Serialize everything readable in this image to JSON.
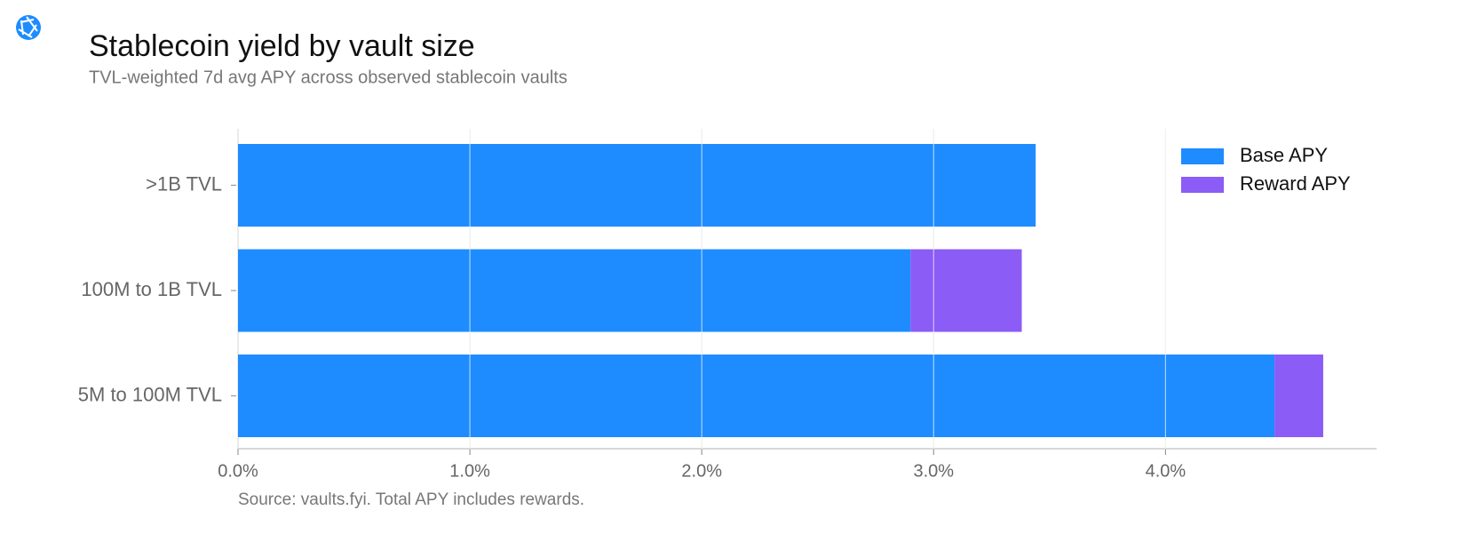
{
  "chart_data": {
    "type": "stacked-barh",
    "title": "Stablecoin yield by vault size",
    "subtitle": "TVL-weighted 7d avg APY across observed stablecoin vaults",
    "note": "Source: vaults.fyi. Total APY includes rewards.",
    "categories": [
      ">1B TVL",
      "100M to 1B TVL",
      "5M to 100M TVL"
    ],
    "series": [
      {
        "name": "Base APY",
        "color": "#1e8cff",
        "values": [
          3.44,
          2.9,
          4.47
        ]
      },
      {
        "name": "Reward APY",
        "color": "#8b5cf6",
        "values": [
          0,
          0.48,
          0.21
        ]
      }
    ],
    "xlim": [
      0,
      4.91
    ],
    "xticks": [
      {
        "value": 0,
        "label": "0.0%"
      },
      {
        "value": 1,
        "label": "1.0%"
      },
      {
        "value": 2,
        "label": "2.0%"
      },
      {
        "value": 3,
        "label": "3.0%"
      },
      {
        "value": 4,
        "label": "4.0%"
      }
    ],
    "grid": true,
    "legend": "upper right"
  }
}
